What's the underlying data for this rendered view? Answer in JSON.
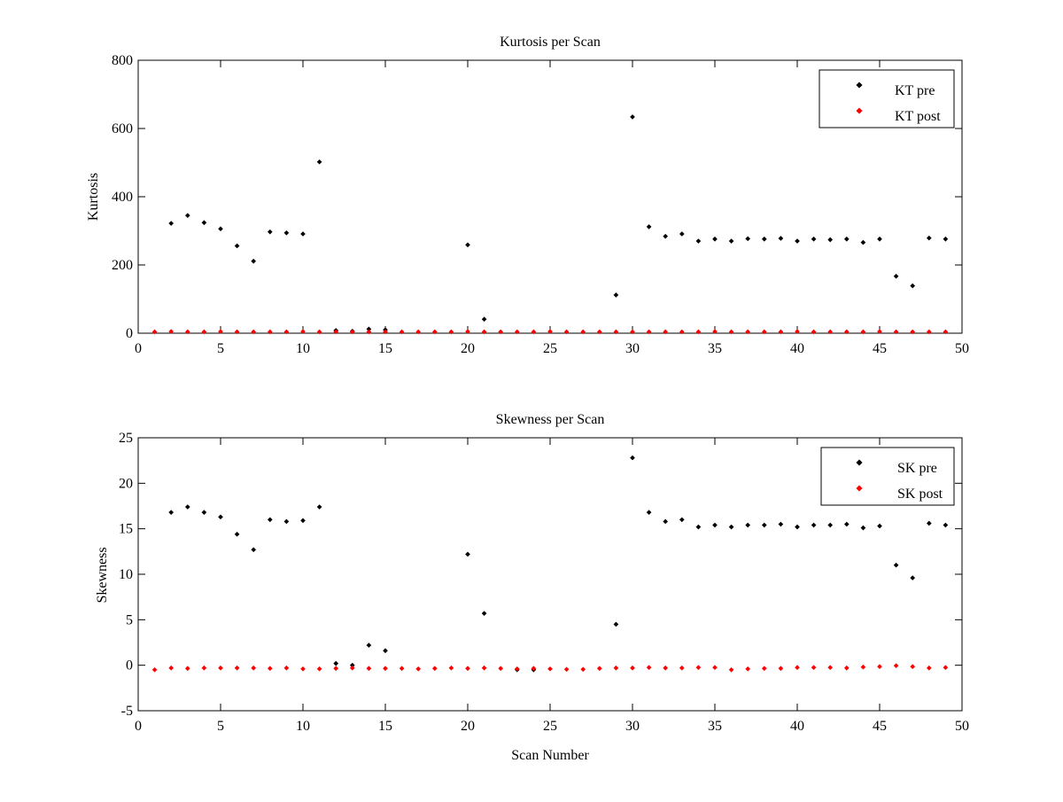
{
  "chart_data": [
    {
      "type": "scatter",
      "title": "Kurtosis per Scan",
      "xlabel": "",
      "ylabel": "Kurtosis",
      "xlim": [
        0,
        50
      ],
      "ylim": [
        0,
        800
      ],
      "xticks": [
        0,
        5,
        10,
        15,
        20,
        25,
        30,
        35,
        40,
        45,
        50
      ],
      "yticks": [
        0,
        200,
        400,
        600,
        800
      ],
      "grid": false,
      "legend_position": "top-right",
      "series": [
        {
          "name": "KT pre",
          "color": "#000000",
          "x": [
            2,
            3,
            4,
            5,
            6,
            7,
            8,
            9,
            10,
            11,
            12,
            13,
            14,
            15,
            20,
            21,
            29,
            30,
            31,
            32,
            33,
            34,
            35,
            36,
            37,
            38,
            39,
            40,
            41,
            42,
            43,
            44,
            45,
            46,
            47,
            48,
            49
          ],
          "y": [
            322,
            345,
            324,
            306,
            256,
            211,
            297,
            294,
            291,
            502,
            8,
            6,
            12,
            10,
            259,
            41,
            112,
            634,
            312,
            284,
            291,
            270,
            276,
            270,
            277,
            276,
            278,
            270,
            276,
            274,
            276,
            266,
            276,
            167,
            139,
            279,
            276
          ]
        },
        {
          "name": "KT post",
          "color": "#ff0000",
          "x": [
            1,
            2,
            3,
            4,
            5,
            6,
            7,
            8,
            9,
            10,
            11,
            12,
            13,
            14,
            15,
            16,
            17,
            18,
            19,
            20,
            21,
            22,
            23,
            24,
            25,
            26,
            27,
            28,
            29,
            30,
            31,
            32,
            33,
            34,
            35,
            36,
            37,
            38,
            39,
            40,
            41,
            42,
            43,
            44,
            45,
            46,
            47,
            48,
            49
          ],
          "y": [
            4,
            5,
            4,
            4,
            5,
            4,
            4,
            4,
            4,
            5,
            4,
            4,
            4,
            4,
            4,
            4,
            4,
            4,
            4,
            5,
            4,
            4,
            4,
            4,
            5,
            4,
            4,
            4,
            4,
            4,
            4,
            4,
            4,
            4,
            5,
            4,
            4,
            4,
            4,
            5,
            4,
            4,
            4,
            4,
            5,
            4,
            4,
            4,
            4
          ]
        }
      ]
    },
    {
      "type": "scatter",
      "title": "Skewness per Scan",
      "xlabel": "Scan Number",
      "ylabel": "Skewness",
      "xlim": [
        0,
        50
      ],
      "ylim": [
        -5,
        25
      ],
      "xticks": [
        0,
        5,
        10,
        15,
        20,
        25,
        30,
        35,
        40,
        45,
        50
      ],
      "yticks": [
        -5,
        0,
        5,
        10,
        15,
        20,
        25
      ],
      "grid": false,
      "legend_position": "top-right",
      "series": [
        {
          "name": "SK pre",
          "color": "#000000",
          "x": [
            2,
            3,
            4,
            5,
            6,
            7,
            8,
            9,
            10,
            11,
            12,
            13,
            14,
            15,
            20,
            21,
            23,
            24,
            29,
            30,
            31,
            32,
            33,
            34,
            35,
            36,
            37,
            38,
            39,
            40,
            41,
            42,
            43,
            44,
            45,
            46,
            47,
            48,
            49
          ],
          "y": [
            16.8,
            17.4,
            16.8,
            16.3,
            14.4,
            12.7,
            16.0,
            15.8,
            15.9,
            17.4,
            0.2,
            0.0,
            2.2,
            1.6,
            12.2,
            5.7,
            -0.5,
            -0.5,
            4.5,
            22.8,
            16.8,
            15.8,
            16.0,
            15.2,
            15.4,
            15.2,
            15.4,
            15.4,
            15.5,
            15.2,
            15.4,
            15.4,
            15.5,
            15.1,
            15.3,
            11.0,
            9.6,
            15.6,
            15.4
          ]
        },
        {
          "name": "SK post",
          "color": "#ff0000",
          "x": [
            1,
            2,
            3,
            4,
            5,
            6,
            7,
            8,
            9,
            10,
            11,
            12,
            13,
            14,
            15,
            16,
            17,
            18,
            19,
            20,
            21,
            22,
            23,
            24,
            25,
            26,
            27,
            28,
            29,
            30,
            31,
            32,
            33,
            34,
            35,
            36,
            37,
            38,
            39,
            40,
            41,
            42,
            43,
            44,
            45,
            46,
            47,
            48,
            49
          ],
          "y": [
            -0.5,
            -0.3,
            -0.35,
            -0.3,
            -0.3,
            -0.3,
            -0.3,
            -0.35,
            -0.3,
            -0.4,
            -0.4,
            -0.35,
            -0.3,
            -0.35,
            -0.35,
            -0.35,
            -0.4,
            -0.35,
            -0.3,
            -0.35,
            -0.3,
            -0.35,
            -0.4,
            -0.35,
            -0.4,
            -0.45,
            -0.45,
            -0.35,
            -0.3,
            -0.3,
            -0.25,
            -0.3,
            -0.3,
            -0.25,
            -0.25,
            -0.5,
            -0.4,
            -0.35,
            -0.35,
            -0.25,
            -0.25,
            -0.25,
            -0.3,
            -0.2,
            -0.15,
            -0.05,
            -0.15,
            -0.3,
            -0.25
          ]
        }
      ]
    }
  ]
}
